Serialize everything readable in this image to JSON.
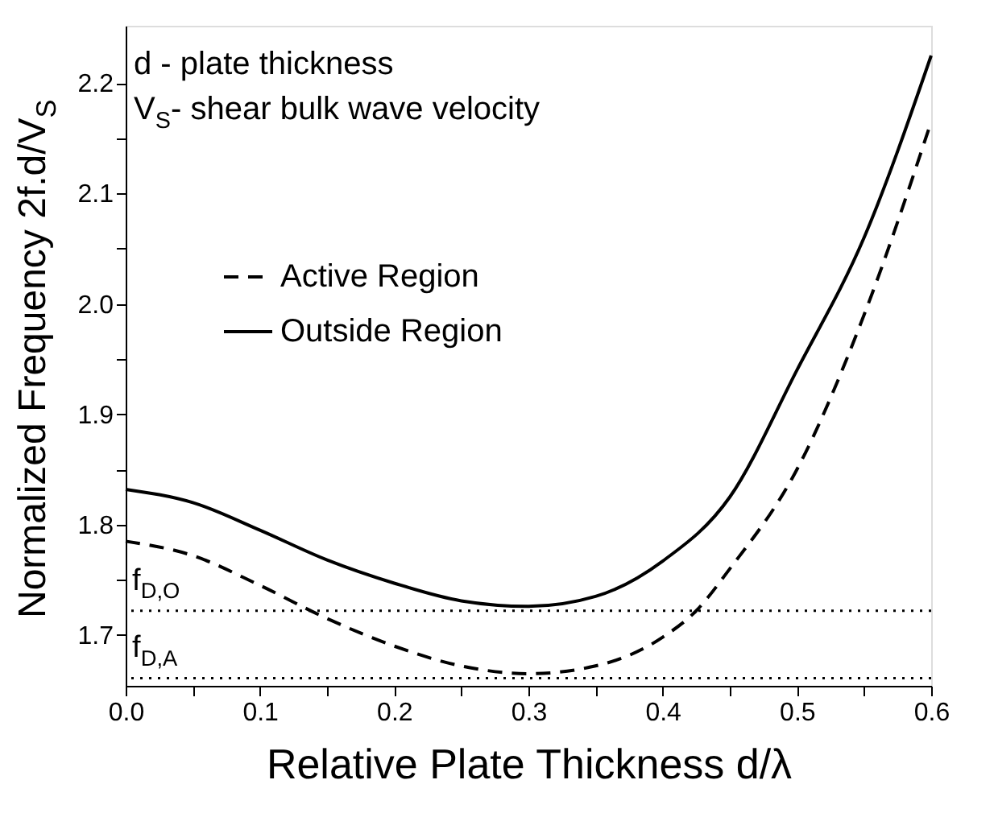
{
  "chart_data": {
    "type": "line",
    "xlabel": "Relative Plate Thickness d/λ",
    "ylabel": "Normalized Frequency 2f.d/V$_{S}$",
    "x": [
      0,
      0.05,
      0.1,
      0.15,
      0.2,
      0.25,
      0.3,
      0.35,
      0.4,
      0.45,
      0.5,
      0.55,
      0.6
    ],
    "series": [
      {
        "name": "Active Region",
        "color": "#000000",
        "line_style": "dashed",
        "x": [
          0,
          0.05,
          0.1,
          0.15,
          0.2,
          0.25,
          0.3,
          0.35,
          0.4,
          0.425,
          0.45,
          0.5,
          0.55,
          0.6
        ],
        "values": [
          1.785,
          1.772,
          1.745,
          1.715,
          1.69,
          1.672,
          1.665,
          1.672,
          1.698,
          1.722,
          1.76,
          1.85,
          1.99,
          2.165
        ]
      },
      {
        "name": "Outside Region",
        "color": "#000000",
        "line_style": "solid",
        "values": [
          1.832,
          1.82,
          1.795,
          1.768,
          1.747,
          1.731,
          1.726,
          1.735,
          1.767,
          1.825,
          1.94,
          2.06,
          2.225
        ]
      }
    ],
    "xlim": [
      0,
      0.6
    ],
    "ylim": [
      1.654,
      2.252
    ],
    "xticks": [
      {
        "value": 0,
        "label": "0.0"
      },
      {
        "value": 0.05,
        "label": null
      },
      0.1,
      {
        "value": 0.15,
        "label": null
      },
      0.2,
      {
        "value": 0.25,
        "label": null
      },
      0.3,
      {
        "value": 0.35,
        "label": null
      },
      0.4,
      {
        "value": 0.45,
        "label": null
      },
      0.5,
      {
        "value": 0.55,
        "label": null
      },
      0.6
    ],
    "yticks": [
      1.7,
      {
        "value": 1.75,
        "label": null
      },
      1.8,
      {
        "value": 1.85,
        "label": null
      },
      1.9,
      {
        "value": 1.95,
        "label": null
      },
      {
        "value": 2.0,
        "label": "2.0"
      },
      {
        "value": 2.05,
        "label": null
      },
      2.1,
      {
        "value": 2.15,
        "label": null
      },
      2.2
    ],
    "ref_lines": [
      {
        "axis": "y",
        "value": 1.722,
        "label": "f$_{D,O}$",
        "line_style": "dotted",
        "color": "#000000"
      },
      {
        "axis": "y",
        "value": 1.661,
        "label": "f$_{D,A}$",
        "line_style": "dotted",
        "color": "#000000"
      }
    ],
    "annotations": [
      "d - plate thickness",
      "V$_{S}$- shear bulk wave velocity"
    ],
    "legend": "top left",
    "grid": false,
    "marker": "none"
  }
}
